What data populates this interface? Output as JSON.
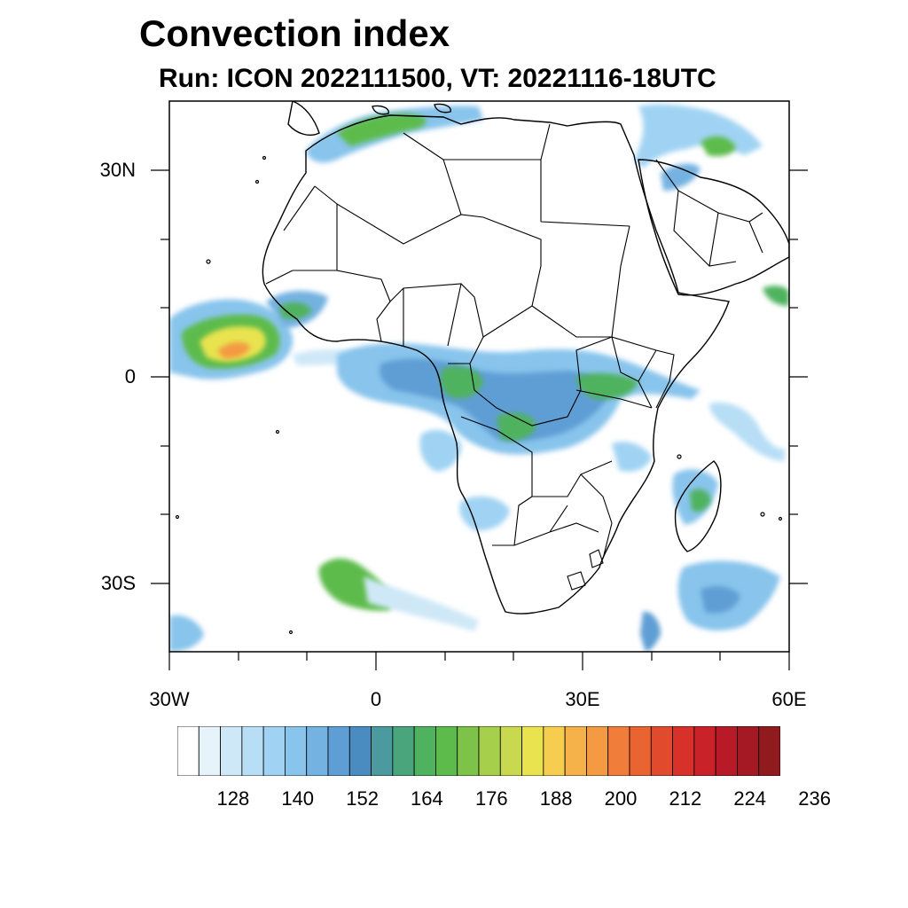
{
  "title": "Convection index",
  "subtitle": "Run: ICON 2022111500,  VT: 20221116-18UTC",
  "map": {
    "extent": {
      "lon": [
        -30,
        60
      ],
      "lat": [
        -40,
        40
      ]
    },
    "lat_ticks": [
      {
        "lat": 30,
        "label": "30N"
      },
      {
        "lat": 0,
        "label": "0"
      },
      {
        "lat": -30,
        "label": "30S"
      }
    ],
    "lon_ticks": [
      {
        "lon": -30,
        "label": "30W"
      },
      {
        "lon": 0,
        "label": "0"
      },
      {
        "lon": 30,
        "label": "30E"
      },
      {
        "lon": 60,
        "label": "60E"
      }
    ],
    "background_color": "#ffffff",
    "boundary_color": "#000000"
  },
  "colorbar": {
    "colors": [
      "#ffffff",
      "#e6f3fb",
      "#cfe8f7",
      "#b7def5",
      "#a0d3f3",
      "#88c4ec",
      "#74b2e1",
      "#5e9ed4",
      "#4a8cc0",
      "#4a9a9f",
      "#4aa57d",
      "#4fb25e",
      "#5dbb4b",
      "#7dc34a",
      "#a6cf4c",
      "#c9d94f",
      "#e8e34f",
      "#f6cd4f",
      "#f6b24a",
      "#f49a43",
      "#f07e3a",
      "#ea6432",
      "#e24a2d",
      "#d83129",
      "#c92229",
      "#b81a27",
      "#a41923",
      "#8f1b1e"
    ],
    "labels": [
      "128",
      "140",
      "152",
      "164",
      "176",
      "188",
      "200",
      "212",
      "224",
      "236"
    ]
  }
}
